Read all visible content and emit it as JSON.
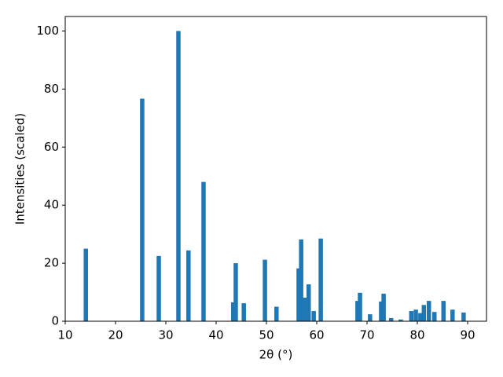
{
  "chart_data": {
    "type": "bar",
    "xlabel": "2θ (°)",
    "ylabel": "Intensities (scaled)",
    "x": [
      14.1,
      25.3,
      28.6,
      32.5,
      34.5,
      37.5,
      43.4,
      43.9,
      45.5,
      49.7,
      52.0,
      56.4,
      56.9,
      57.7,
      58.4,
      59.4,
      60.8,
      68.1,
      68.6,
      70.6,
      72.8,
      73.3,
      74.8,
      76.7,
      78.8,
      79.7,
      80.6,
      81.3,
      82.3,
      83.4,
      85.2,
      87.0,
      89.2
    ],
    "values": [
      25,
      76.7,
      22.5,
      100,
      24.4,
      48,
      6.5,
      20,
      6.2,
      21.2,
      5,
      18.2,
      28.2,
      8.1,
      12.7,
      3.5,
      28.5,
      7,
      9.8,
      2.4,
      6.8,
      9.5,
      1.1,
      0.6,
      3.5,
      4,
      2.8,
      5.6,
      7,
      3.2,
      7,
      4,
      3
    ],
    "color": "#1f77b4",
    "xlim": [
      10,
      93.75
    ],
    "xticks": [
      10,
      20,
      30,
      40,
      50,
      60,
      70,
      80,
      90
    ],
    "ylim": [
      0,
      105
    ],
    "yticks": [
      0,
      20,
      40,
      60,
      80,
      100
    ]
  }
}
